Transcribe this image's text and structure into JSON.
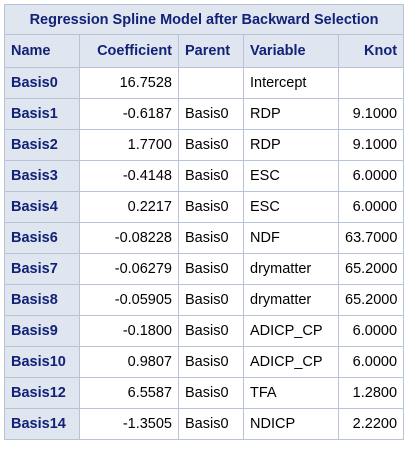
{
  "table": {
    "title": "Regression Spline Model after Backward Selection",
    "columns": [
      "Name",
      "Coefficient",
      "Parent",
      "Variable",
      "Knot"
    ],
    "rows": [
      {
        "name": "Basis0",
        "coefficient": "16.7528",
        "parent": "",
        "variable": "Intercept",
        "knot": ""
      },
      {
        "name": "Basis1",
        "coefficient": "-0.6187",
        "parent": "Basis0",
        "variable": "RDP",
        "knot": "9.1000"
      },
      {
        "name": "Basis2",
        "coefficient": "1.7700",
        "parent": "Basis0",
        "variable": "RDP",
        "knot": "9.1000"
      },
      {
        "name": "Basis3",
        "coefficient": "-0.4148",
        "parent": "Basis0",
        "variable": "ESC",
        "knot": "6.0000"
      },
      {
        "name": "Basis4",
        "coefficient": "0.2217",
        "parent": "Basis0",
        "variable": "ESC",
        "knot": "6.0000"
      },
      {
        "name": "Basis6",
        "coefficient": "-0.08228",
        "parent": "Basis0",
        "variable": "NDF",
        "knot": "63.7000"
      },
      {
        "name": "Basis7",
        "coefficient": "-0.06279",
        "parent": "Basis0",
        "variable": "drymatter",
        "knot": "65.2000"
      },
      {
        "name": "Basis8",
        "coefficient": "-0.05905",
        "parent": "Basis0",
        "variable": "drymatter",
        "knot": "65.2000"
      },
      {
        "name": "Basis9",
        "coefficient": "-0.1800",
        "parent": "Basis0",
        "variable": "ADICP_CP",
        "knot": "6.0000"
      },
      {
        "name": "Basis10",
        "coefficient": "0.9807",
        "parent": "Basis0",
        "variable": "ADICP_CP",
        "knot": "6.0000"
      },
      {
        "name": "Basis12",
        "coefficient": "6.5587",
        "parent": "Basis0",
        "variable": "TFA",
        "knot": "1.2800"
      },
      {
        "name": "Basis14",
        "coefficient": "-1.3505",
        "parent": "Basis0",
        "variable": "NDICP",
        "knot": "2.2200"
      }
    ]
  },
  "colors": {
    "header_bg": "#dfe6f0",
    "header_text": "#112277",
    "border": "#b7c4d6"
  }
}
